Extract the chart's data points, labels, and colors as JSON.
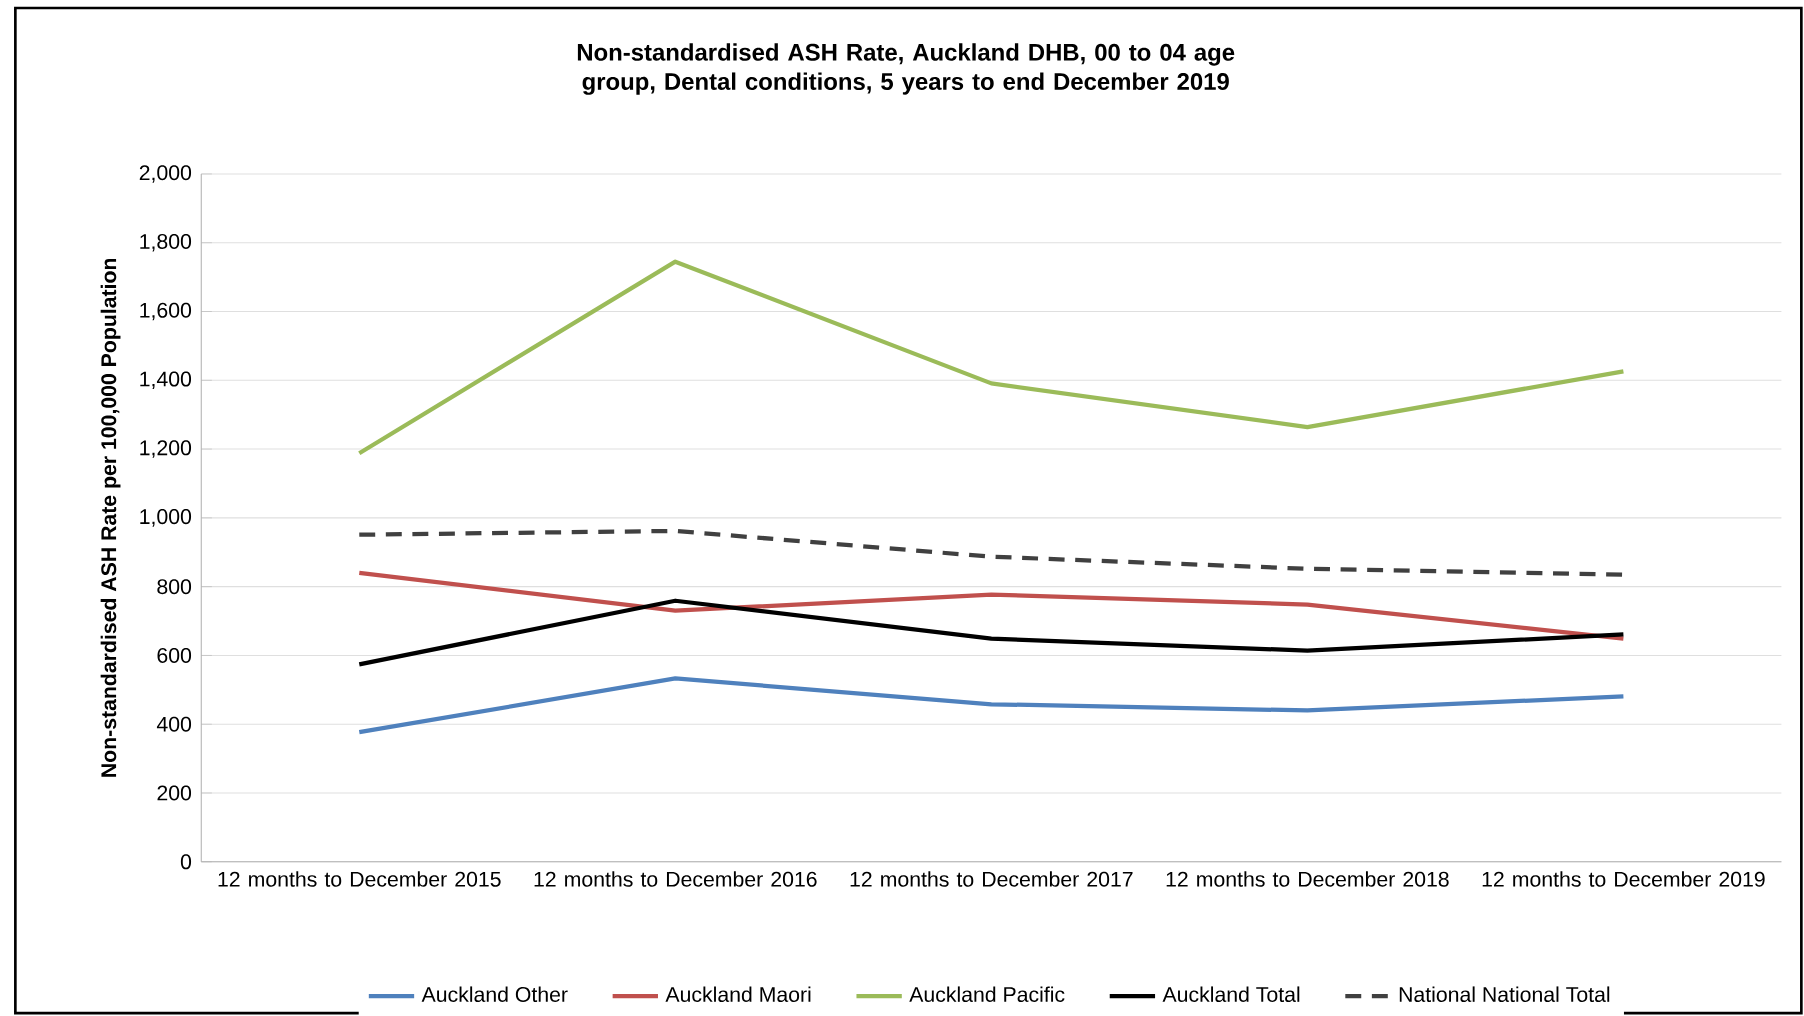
{
  "chart_data": {
    "type": "line",
    "title": "Non-standardised ASH Rate, Auckland DHB, 00 to 04 age group, Dental conditions, 5 years to end December 2019",
    "ylabel": "Non-standardised ASH Rate per 100,000 Population",
    "categories": [
      "12 months to December 2015",
      "12 months to December 2016",
      "12 months to December 2017",
      "12 months to December 2018",
      "12 months to December 2019"
    ],
    "series": [
      {
        "name": "Auckland   Other",
        "color": "#4f81bd",
        "values": [
          377,
          533,
          458,
          440,
          481
        ]
      },
      {
        "name": "Auckland   Maori",
        "color": "#c0504d",
        "values": [
          840,
          730,
          777,
          748,
          649
        ]
      },
      {
        "name": "Auckland   Pacific",
        "color": "#9bbb59",
        "values": [
          1188,
          1745,
          1391,
          1264,
          1426
        ]
      },
      {
        "name": "Auckland   Total",
        "color": "#000000",
        "values": [
          574,
          759,
          649,
          614,
          661
        ]
      },
      {
        "name": "National  National Total",
        "color": "#404040",
        "line_style": "dashed",
        "values": [
          951,
          962,
          887,
          852,
          835
        ]
      }
    ],
    "ylim": [
      0,
      2000
    ],
    "yticks": [
      {
        "value": 0,
        "label": "0"
      },
      {
        "value": 200,
        "label": "200"
      },
      {
        "value": 400,
        "label": "400"
      },
      {
        "value": 600,
        "label": "600"
      },
      {
        "value": 800,
        "label": "800"
      },
      {
        "value": 1000,
        "label": "1,000"
      },
      {
        "value": 1200,
        "label": "1,200"
      },
      {
        "value": 1400,
        "label": "1,400"
      },
      {
        "value": 1600,
        "label": "1,600"
      },
      {
        "value": 1800,
        "label": "1,800"
      },
      {
        "value": 2000,
        "label": "2,000"
      }
    ],
    "grid": "y",
    "legend": "bottom",
    "marker": "none"
  }
}
